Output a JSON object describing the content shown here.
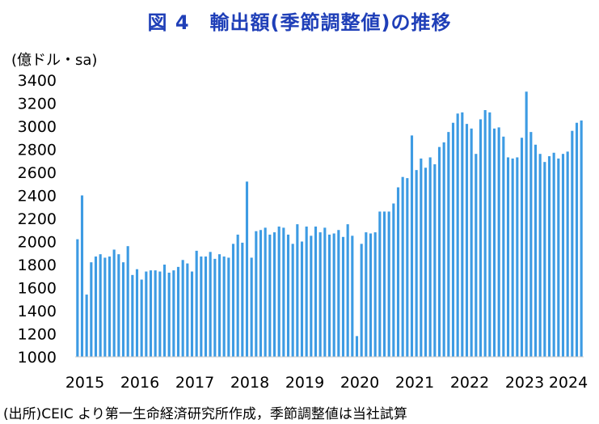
{
  "title": "図 4　輸出額(季節調整値)の推移",
  "y_unit": "(億ドル・sa)",
  "source": "(出所)CEIC より第一生命経済研究所作成，季節調整値は当社試算",
  "colors": {
    "title": "#1f3fb8",
    "bar": "#3d9be3",
    "axis": "#c8c8c8"
  },
  "chart_data": {
    "type": "bar",
    "title": "図 4　輸出額(季節調整値)の推移",
    "xlabel": "",
    "ylabel": "(億ドル・sa)",
    "ylim": [
      1000,
      3400
    ],
    "yticks": [
      1000,
      1200,
      1400,
      1600,
      1800,
      2000,
      2200,
      2400,
      2600,
      2800,
      3000,
      3200,
      3400
    ],
    "xticks": [
      "2015",
      "2016",
      "2017",
      "2018",
      "2019",
      "2020",
      "2021",
      "2022",
      "2023",
      "2024"
    ],
    "grid": false,
    "start": "2015-01",
    "frequency": "monthly",
    "values": [
      2020,
      2400,
      1540,
      1820,
      1870,
      1890,
      1860,
      1870,
      1930,
      1890,
      1820,
      1960,
      1710,
      1760,
      1670,
      1740,
      1750,
      1750,
      1740,
      1800,
      1730,
      1750,
      1780,
      1840,
      1810,
      1740,
      1920,
      1870,
      1870,
      1910,
      1850,
      1890,
      1870,
      1860,
      1980,
      2060,
      1990,
      2520,
      1860,
      2090,
      2100,
      2120,
      2060,
      2080,
      2130,
      2120,
      2060,
      1980,
      2150,
      2000,
      2130,
      2050,
      2130,
      2080,
      2120,
      2060,
      2070,
      2100,
      2040,
      2150,
      2050,
      1180,
      1980,
      2080,
      2070,
      2080,
      2260,
      2260,
      2260,
      2330,
      2470,
      2560,
      2550,
      2920,
      2620,
      2720,
      2640,
      2730,
      2670,
      2820,
      2860,
      2950,
      3030,
      3110,
      3120,
      3020,
      2980,
      2760,
      3060,
      3140,
      3120,
      2980,
      2990,
      2910,
      2730,
      2720,
      2730,
      2900,
      3300,
      2950,
      2840,
      2760,
      2690,
      2740,
      2770,
      2720,
      2760,
      2780,
      2960,
      3030,
      3050
    ]
  }
}
